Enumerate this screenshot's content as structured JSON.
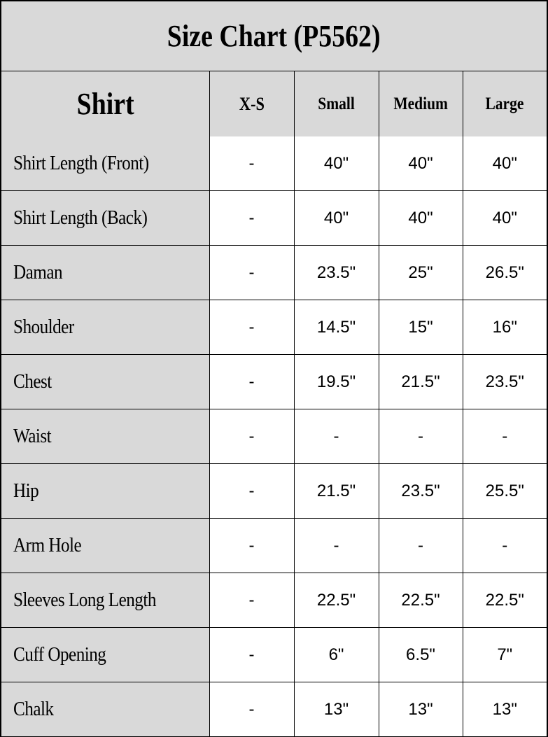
{
  "title": "Size Chart (P5562)",
  "header": {
    "section": "Shirt",
    "sizes": [
      "X-S",
      "Small",
      "Medium",
      "Large"
    ]
  },
  "rows": [
    {
      "label": "Shirt Length (Front)",
      "values": [
        "-",
        "40\"",
        "40\"",
        "40\""
      ]
    },
    {
      "label": "Shirt Length (Back)",
      "values": [
        "-",
        "40\"",
        "40\"",
        "40\""
      ]
    },
    {
      "label": "Daman",
      "values": [
        "-",
        "23.5\"",
        "25\"",
        "26.5\""
      ]
    },
    {
      "label": "Shoulder",
      "values": [
        "-",
        "14.5\"",
        "15\"",
        "16\""
      ]
    },
    {
      "label": "Chest",
      "values": [
        "-",
        "19.5\"",
        "21.5\"",
        "23.5\""
      ]
    },
    {
      "label": "Waist",
      "values": [
        "-",
        "-",
        "-",
        "-"
      ]
    },
    {
      "label": "Hip",
      "values": [
        "-",
        "21.5\"",
        "23.5\"",
        "25.5\""
      ]
    },
    {
      "label": "Arm Hole",
      "values": [
        "-",
        "-",
        "-",
        "-"
      ]
    },
    {
      "label": "Sleeves Long Length",
      "values": [
        "-",
        "22.5\"",
        "22.5\"",
        "22.5\""
      ]
    },
    {
      "label": "Cuff Opening",
      "values": [
        "-",
        "6\"",
        "6.5\"",
        "7\""
      ]
    },
    {
      "label": "Chalk",
      "values": [
        "-",
        "13\"",
        "13\"",
        "13\""
      ]
    }
  ],
  "colors": {
    "header_bg": "#d9d9d9",
    "border": "#000000"
  }
}
